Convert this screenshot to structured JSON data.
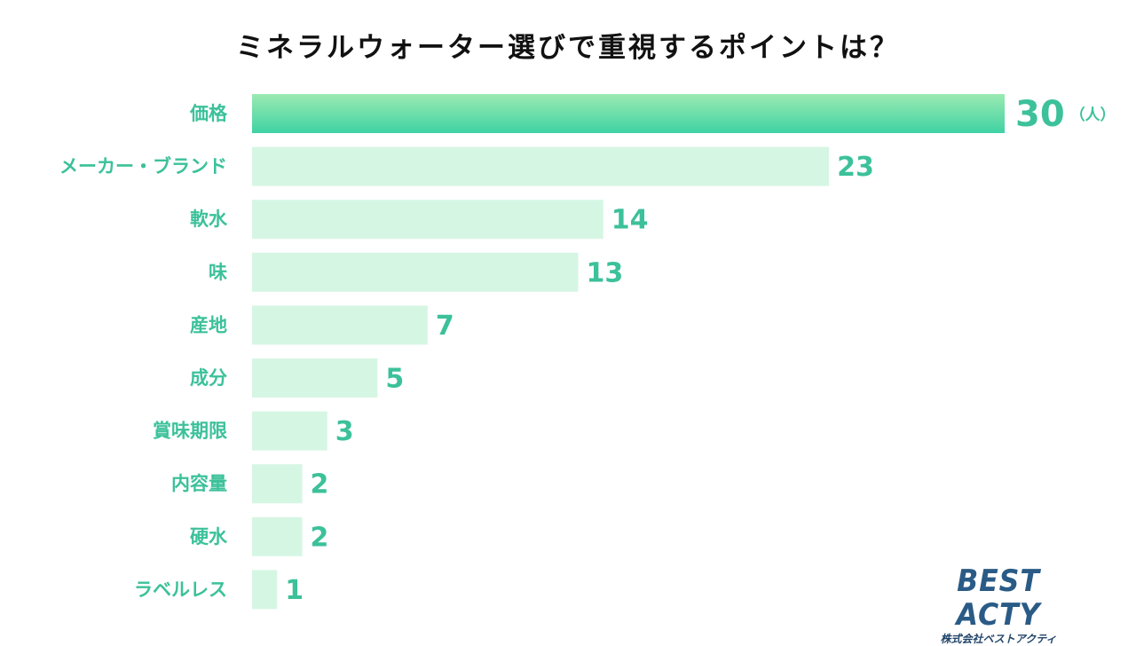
{
  "title": "ミネラルウォーター選びで重視するポイントは？",
  "chart_data": {
    "type": "bar",
    "orientation": "horizontal",
    "title": "ミネラルウォーター選びで重視するポイントは？",
    "categories": [
      "価格",
      "メーカー・ブランド",
      "軟水",
      "味",
      "産地",
      "成分",
      "賞味期限",
      "内容量",
      "硬水",
      "ラベルレス"
    ],
    "values": [
      30,
      23,
      14,
      13,
      7,
      5,
      3,
      2,
      2,
      1
    ],
    "unit": "（人）",
    "xlim": [
      0,
      30
    ],
    "grid": false,
    "legend": "none",
    "colors": {
      "highlight_start": "#9beab1",
      "highlight_end": "#3fd2a4",
      "bar": "#d6f6e4",
      "label": "#3cc19a"
    }
  },
  "logo": {
    "main": "BEST ACTY",
    "sub": "株式会社ベストアクティ"
  }
}
